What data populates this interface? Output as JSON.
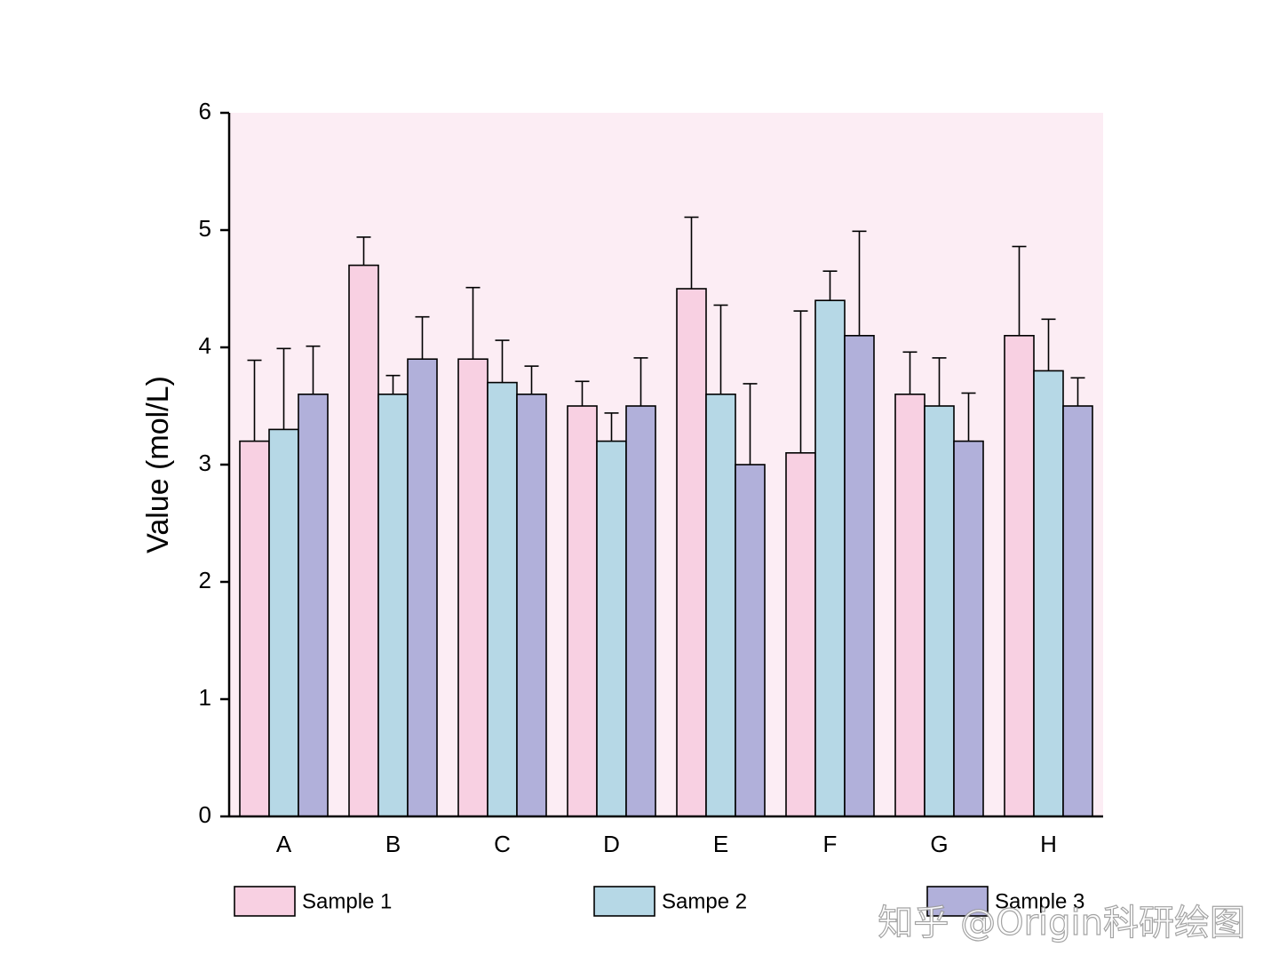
{
  "chart_data": {
    "type": "bar",
    "title": "",
    "xlabel": "",
    "ylabel": "Value (mol/L)",
    "ylim": [
      0,
      6
    ],
    "yticks": [
      "0",
      "1",
      "2",
      "3",
      "4",
      "5",
      "6"
    ],
    "categories": [
      "A",
      "B",
      "C",
      "D",
      "E",
      "F",
      "G",
      "H"
    ],
    "series": [
      {
        "name": "Sample 1",
        "color": "#f8d0e2",
        "values": [
          3.2,
          4.7,
          3.9,
          3.5,
          4.5,
          3.1,
          3.6,
          4.1
        ],
        "errors": [
          0.69,
          0.24,
          0.61,
          0.21,
          0.61,
          1.21,
          0.36,
          0.76
        ]
      },
      {
        "name": "Sampe 2",
        "color": "#b6d8e6",
        "values": [
          3.3,
          3.6,
          3.7,
          3.2,
          3.6,
          4.4,
          3.5,
          3.8
        ],
        "errors": [
          0.69,
          0.16,
          0.36,
          0.24,
          0.76,
          0.25,
          0.41,
          0.44
        ]
      },
      {
        "name": "Sample 3",
        "color": "#b1b0da",
        "values": [
          3.6,
          3.9,
          3.6,
          3.5,
          3.0,
          4.1,
          3.2,
          3.5
        ],
        "errors": [
          0.41,
          0.36,
          0.24,
          0.41,
          0.69,
          0.89,
          0.41,
          0.24
        ]
      }
    ],
    "plot_background": "#fcedf4",
    "legend_position": "bottom",
    "error_bars": "upper"
  },
  "watermark": "知乎 @Origin科研绘图"
}
